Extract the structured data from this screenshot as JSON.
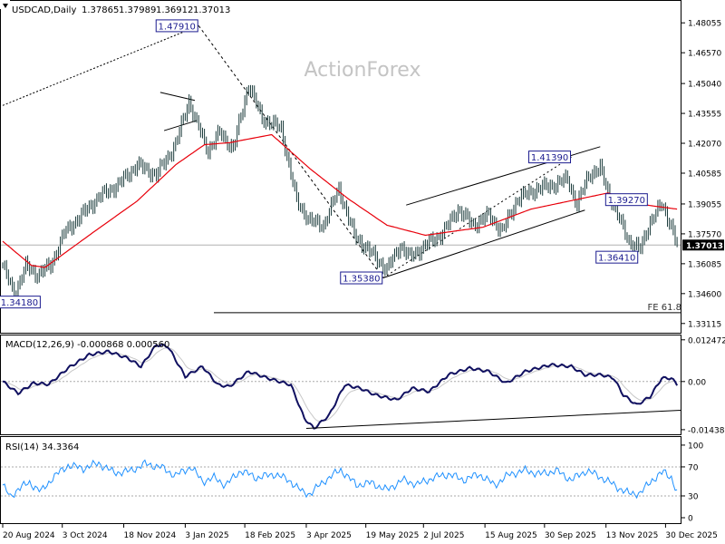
{
  "chart_data": {
    "type": "line",
    "header": {
      "symbol_timeframe": "USDCAD,Daily",
      "ohlc": [
        "1.37865",
        "1.37989",
        "1.36912",
        "1.37013"
      ]
    },
    "watermark": "ActionForex",
    "price_axis": {
      "ticks": [
        "1.48055",
        "1.46570",
        "1.45040",
        "1.43555",
        "1.42070",
        "1.40585",
        "1.39055",
        "1.37570",
        "1.36085",
        "1.34600",
        "1.33115"
      ],
      "tick_values": [
        1.48055,
        1.4657,
        1.4504,
        1.43555,
        1.4207,
        1.40585,
        1.39055,
        1.3757,
        1.36085,
        1.346,
        1.33115
      ],
      "ylim": [
        1.327,
        1.491
      ],
      "current_price_label": "1.37013",
      "current_price": 1.37013
    },
    "x_axis": {
      "labels": [
        "20 Aug 2024",
        "3 Oct 2024",
        "18 Nov 2024",
        "3 Jan 2025",
        "18 Feb 2025",
        "3 Apr 2025",
        "19 May 2025",
        "2 Jul 2025",
        "15 Aug 2025",
        "30 Sep 2025",
        "13 Nov 2025",
        "30 Dec 2025"
      ],
      "label_index": [
        0,
        31,
        63,
        95,
        126,
        158,
        189,
        219,
        251,
        282,
        314,
        345
      ]
    },
    "price_series": {
      "name": "",
      "anchors": [
        {
          "i": 0,
          "v": 1.36
        },
        {
          "i": 6,
          "v": 1.3455
        },
        {
          "i": 12,
          "v": 1.3595
        },
        {
          "i": 18,
          "v": 1.3555
        },
        {
          "i": 25,
          "v": 1.36
        },
        {
          "i": 32,
          "v": 1.376
        },
        {
          "i": 40,
          "v": 1.384
        },
        {
          "i": 50,
          "v": 1.394
        },
        {
          "i": 60,
          "v": 1.4
        },
        {
          "i": 70,
          "v": 1.41
        },
        {
          "i": 80,
          "v": 1.405
        },
        {
          "i": 90,
          "v": 1.42
        },
        {
          "i": 97,
          "v": 1.442
        },
        {
          "i": 100,
          "v": 1.433
        },
        {
          "i": 107,
          "v": 1.417
        },
        {
          "i": 113,
          "v": 1.426
        },
        {
          "i": 120,
          "v": 1.418
        },
        {
          "i": 128,
          "v": 1.45
        },
        {
          "i": 135,
          "v": 1.433
        },
        {
          "i": 145,
          "v": 1.428
        },
        {
          "i": 153,
          "v": 1.392
        },
        {
          "i": 160,
          "v": 1.382
        },
        {
          "i": 167,
          "v": 1.38
        },
        {
          "i": 175,
          "v": 1.398
        },
        {
          "i": 183,
          "v": 1.375
        },
        {
          "i": 190,
          "v": 1.368
        },
        {
          "i": 200,
          "v": 1.358
        },
        {
          "i": 207,
          "v": 1.37
        },
        {
          "i": 212,
          "v": 1.364
        },
        {
          "i": 220,
          "v": 1.37
        },
        {
          "i": 229,
          "v": 1.376
        },
        {
          "i": 237,
          "v": 1.388
        },
        {
          "i": 245,
          "v": 1.38
        },
        {
          "i": 253,
          "v": 1.385
        },
        {
          "i": 260,
          "v": 1.377
        },
        {
          "i": 268,
          "v": 1.393
        },
        {
          "i": 278,
          "v": 1.398
        },
        {
          "i": 287,
          "v": 1.4
        },
        {
          "i": 294,
          "v": 1.403
        },
        {
          "i": 299,
          "v": 1.39
        },
        {
          "i": 305,
          "v": 1.405
        },
        {
          "i": 311,
          "v": 1.408
        },
        {
          "i": 315,
          "v": 1.397
        },
        {
          "i": 320,
          "v": 1.385
        },
        {
          "i": 326,
          "v": 1.372
        },
        {
          "i": 332,
          "v": 1.368
        },
        {
          "i": 337,
          "v": 1.382
        },
        {
          "i": 343,
          "v": 1.39
        },
        {
          "i": 348,
          "v": 1.3801
        },
        {
          "i": 351,
          "v": 1.3701
        }
      ]
    },
    "moving_average": {
      "color": "#e8000b",
      "anchors": [
        {
          "i": 0,
          "v": 1.372
        },
        {
          "i": 15,
          "v": 1.36
        },
        {
          "i": 22,
          "v": 1.359
        },
        {
          "i": 45,
          "v": 1.375
        },
        {
          "i": 70,
          "v": 1.392
        },
        {
          "i": 90,
          "v": 1.41
        },
        {
          "i": 105,
          "v": 1.42
        },
        {
          "i": 118,
          "v": 1.421
        },
        {
          "i": 140,
          "v": 1.425
        },
        {
          "i": 160,
          "v": 1.408
        },
        {
          "i": 180,
          "v": 1.393
        },
        {
          "i": 200,
          "v": 1.38
        },
        {
          "i": 220,
          "v": 1.375
        },
        {
          "i": 250,
          "v": 1.379
        },
        {
          "i": 275,
          "v": 1.388
        },
        {
          "i": 295,
          "v": 1.392
        },
        {
          "i": 315,
          "v": 1.396
        },
        {
          "i": 335,
          "v": 1.39
        },
        {
          "i": 351,
          "v": 1.388
        }
      ]
    },
    "annotations": {
      "level_labels": [
        {
          "text": "1.47910",
          "i": 102,
          "v": 1.4791,
          "anchor": "end"
        },
        {
          "text": "1.41390",
          "i": 296,
          "v": 1.4139,
          "anchor": "end"
        },
        {
          "text": "1.39270",
          "i": 336,
          "v": 1.3927,
          "anchor": "end"
        },
        {
          "text": "1.36410",
          "i": 331,
          "v": 1.3641,
          "anchor": "end"
        },
        {
          "text": "1.35380",
          "i": 198,
          "v": 1.3538,
          "anchor": "end"
        },
        {
          "text": "1.34180",
          "i": 20,
          "v": 1.3418,
          "anchor": "end"
        }
      ],
      "fe_label": "FE 61.8",
      "fe_level": 1.3365
    },
    "macd": {
      "label": "MACD(12,26,9) -0.000868 0.000560",
      "ticks": [
        "0.012472",
        "0.00",
        "-0.014389"
      ],
      "tick_values": [
        0.012472,
        0.0,
        -0.014389
      ],
      "ylim": [
        -0.0155,
        0.0135
      ],
      "macd_anchors": [
        {
          "i": 0,
          "v": 0.0
        },
        {
          "i": 8,
          "v": -0.0035
        },
        {
          "i": 16,
          "v": -0.0005
        },
        {
          "i": 24,
          "v": -0.0008
        },
        {
          "i": 34,
          "v": 0.004
        },
        {
          "i": 45,
          "v": 0.008
        },
        {
          "i": 55,
          "v": 0.009
        },
        {
          "i": 65,
          "v": 0.007
        },
        {
          "i": 72,
          "v": 0.0045
        },
        {
          "i": 80,
          "v": 0.011
        },
        {
          "i": 86,
          "v": 0.0105
        },
        {
          "i": 95,
          "v": 0.0015
        },
        {
          "i": 104,
          "v": 0.0045
        },
        {
          "i": 112,
          "v": -0.001
        },
        {
          "i": 118,
          "v": -0.0015
        },
        {
          "i": 128,
          "v": 0.003
        },
        {
          "i": 138,
          "v": 0.001
        },
        {
          "i": 150,
          "v": -0.001
        },
        {
          "i": 157,
          "v": -0.011
        },
        {
          "i": 162,
          "v": -0.014
        },
        {
          "i": 170,
          "v": -0.01
        },
        {
          "i": 178,
          "v": -0.001
        },
        {
          "i": 186,
          "v": -0.002
        },
        {
          "i": 194,
          "v": -0.004
        },
        {
          "i": 205,
          "v": -0.0055
        },
        {
          "i": 213,
          "v": -0.002
        },
        {
          "i": 222,
          "v": -0.003
        },
        {
          "i": 232,
          "v": 0.002
        },
        {
          "i": 243,
          "v": 0.004
        },
        {
          "i": 253,
          "v": 0.003
        },
        {
          "i": 262,
          "v": -0.0005
        },
        {
          "i": 272,
          "v": 0.003
        },
        {
          "i": 285,
          "v": 0.005
        },
        {
          "i": 296,
          "v": 0.0045
        },
        {
          "i": 303,
          "v": 0.002
        },
        {
          "i": 312,
          "v": 0.002
        },
        {
          "i": 318,
          "v": 0.001
        },
        {
          "i": 323,
          "v": -0.004
        },
        {
          "i": 330,
          "v": -0.007
        },
        {
          "i": 337,
          "v": -0.0045
        },
        {
          "i": 343,
          "v": 0.001
        },
        {
          "i": 348,
          "v": 0.001
        },
        {
          "i": 351,
          "v": -0.0009
        }
      ],
      "signal_color": "#c8c8c8",
      "trendline": [
        {
          "i": 158,
          "v": -0.014
        },
        {
          "i": 351,
          "v": -0.0086
        }
      ]
    },
    "rsi": {
      "label": "RSI(14) 34.3364",
      "ticks": [
        "100",
        "70",
        "30",
        "0"
      ],
      "tick_values": [
        100,
        70,
        30,
        0
      ],
      "levels": [
        70,
        30
      ],
      "ylim": [
        0,
        100
      ],
      "color": "#1e90ff",
      "anchors": [
        {
          "i": 0,
          "v": 45
        },
        {
          "i": 4,
          "v": 28
        },
        {
          "i": 8,
          "v": 40
        },
        {
          "i": 14,
          "v": 48
        },
        {
          "i": 20,
          "v": 36
        },
        {
          "i": 26,
          "v": 55
        },
        {
          "i": 34,
          "v": 72
        },
        {
          "i": 42,
          "v": 68
        },
        {
          "i": 50,
          "v": 75
        },
        {
          "i": 58,
          "v": 62
        },
        {
          "i": 66,
          "v": 64
        },
        {
          "i": 74,
          "v": 74
        },
        {
          "i": 82,
          "v": 70
        },
        {
          "i": 90,
          "v": 58
        },
        {
          "i": 98,
          "v": 70
        },
        {
          "i": 104,
          "v": 50
        },
        {
          "i": 110,
          "v": 55
        },
        {
          "i": 116,
          "v": 45
        },
        {
          "i": 124,
          "v": 65
        },
        {
          "i": 132,
          "v": 55
        },
        {
          "i": 142,
          "v": 60
        },
        {
          "i": 150,
          "v": 50
        },
        {
          "i": 156,
          "v": 35
        },
        {
          "i": 160,
          "v": 33
        },
        {
          "i": 168,
          "v": 52
        },
        {
          "i": 176,
          "v": 66
        },
        {
          "i": 184,
          "v": 45
        },
        {
          "i": 192,
          "v": 48
        },
        {
          "i": 200,
          "v": 38
        },
        {
          "i": 208,
          "v": 52
        },
        {
          "i": 216,
          "v": 46
        },
        {
          "i": 224,
          "v": 55
        },
        {
          "i": 232,
          "v": 60
        },
        {
          "i": 240,
          "v": 52
        },
        {
          "i": 248,
          "v": 60
        },
        {
          "i": 256,
          "v": 45
        },
        {
          "i": 264,
          "v": 60
        },
        {
          "i": 272,
          "v": 65
        },
        {
          "i": 280,
          "v": 60
        },
        {
          "i": 288,
          "v": 65
        },
        {
          "i": 296,
          "v": 52
        },
        {
          "i": 304,
          "v": 65
        },
        {
          "i": 312,
          "v": 55
        },
        {
          "i": 320,
          "v": 42
        },
        {
          "i": 326,
          "v": 33
        },
        {
          "i": 332,
          "v": 34
        },
        {
          "i": 338,
          "v": 52
        },
        {
          "i": 344,
          "v": 63
        },
        {
          "i": 348,
          "v": 56
        },
        {
          "i": 351,
          "v": 34
        }
      ]
    }
  }
}
